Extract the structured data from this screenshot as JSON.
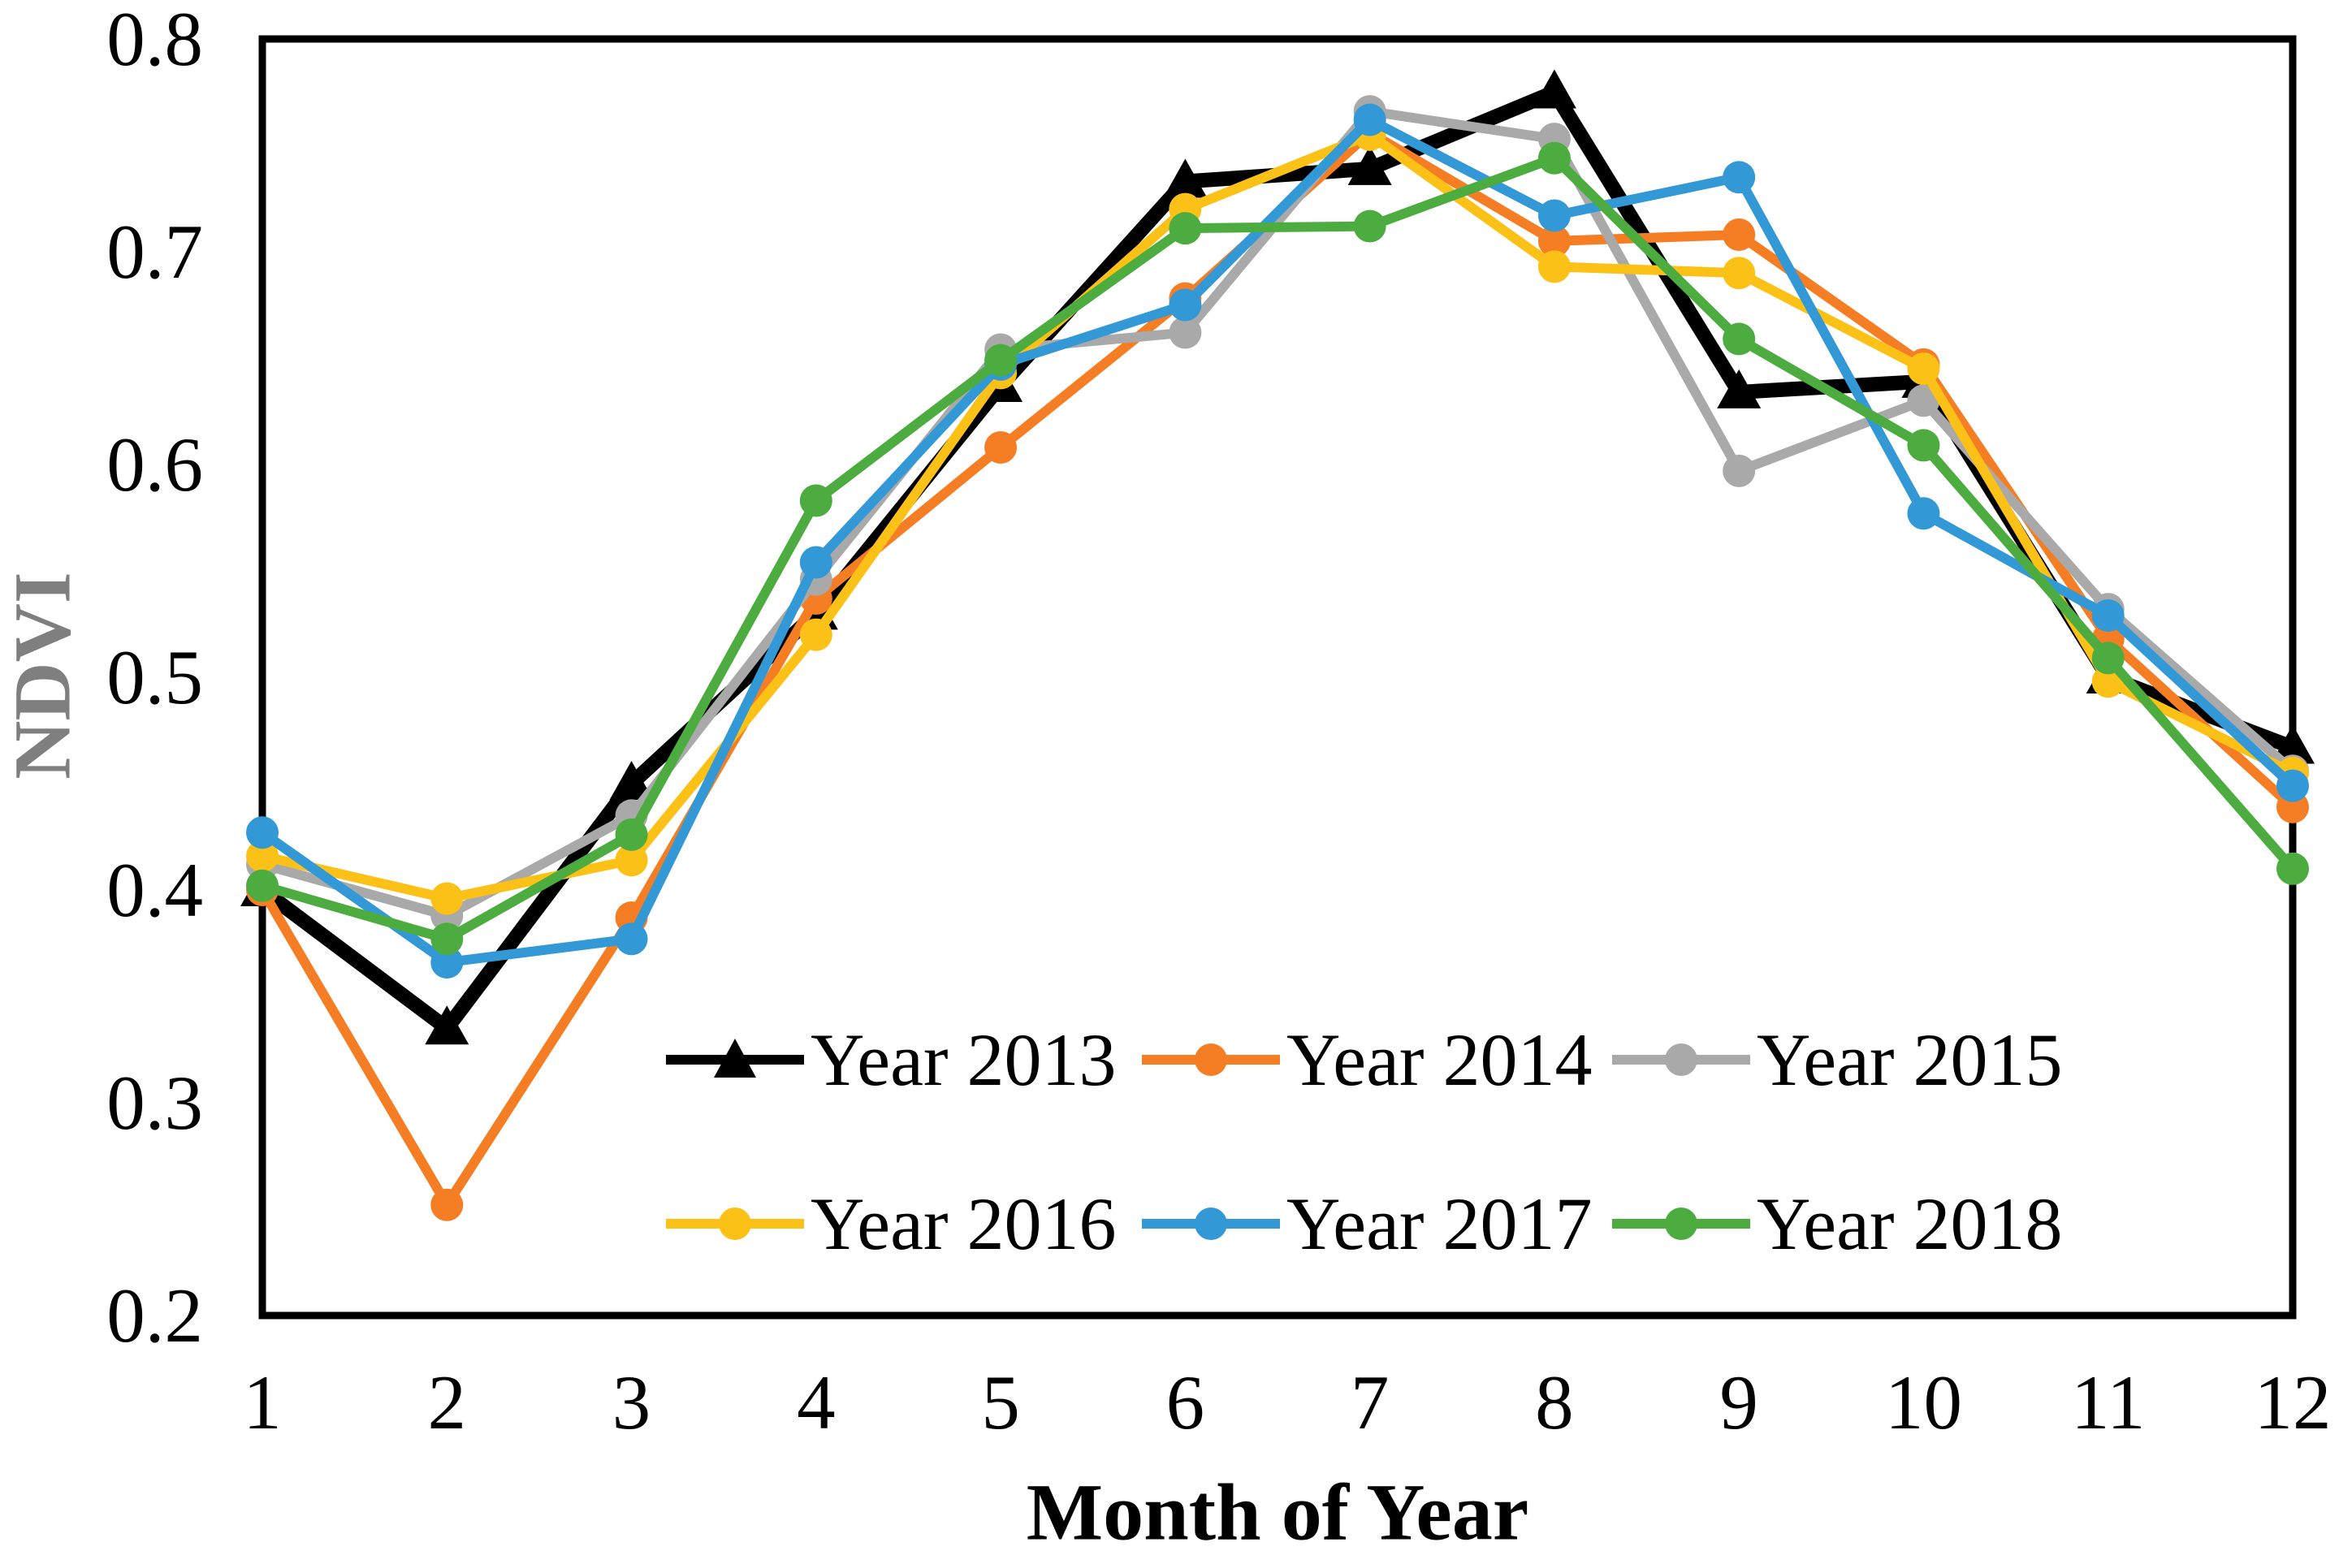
{
  "chart_data": {
    "type": "line",
    "title": "",
    "xlabel": "Month of Year",
    "ylabel": "NDVI",
    "ylabel_color": "#7f7f7f",
    "axis_color": "#000000",
    "grid": false,
    "legend_position": "inside-bottom, two rows",
    "x": [
      1,
      2,
      3,
      4,
      5,
      6,
      7,
      8,
      9,
      10,
      11,
      12
    ],
    "xlim": [
      1,
      12
    ],
    "ylim": [
      0.2,
      0.8
    ],
    "xticks": [
      "1",
      "2",
      "3",
      "4",
      "5",
      "6",
      "7",
      "8",
      "9",
      "10",
      "11",
      "12"
    ],
    "yticks": [
      "0.2",
      "0.3",
      "0.4",
      "0.5",
      "0.6",
      "0.7",
      "0.8"
    ],
    "series": [
      {
        "name": "Year 2013",
        "color": "#000000",
        "marker": "triangle",
        "line_width": 18,
        "values": [
          0.4,
          0.335,
          0.45,
          0.53,
          0.637,
          0.733,
          0.739,
          0.775,
          0.634,
          0.639,
          0.5,
          0.467
        ]
      },
      {
        "name": "Year 2014",
        "color": "#F57E25",
        "marker": "circle",
        "line_width": 12,
        "values": [
          0.4,
          0.252,
          0.387,
          0.537,
          0.608,
          0.678,
          0.756,
          0.705,
          0.708,
          0.647,
          0.518,
          0.439
        ]
      },
      {
        "name": "Year 2015",
        "color": "#A9A9A9",
        "marker": "circle",
        "line_width": 12,
        "values": [
          0.412,
          0.388,
          0.435,
          0.546,
          0.654,
          0.662,
          0.766,
          0.753,
          0.597,
          0.63,
          0.532,
          0.456
        ]
      },
      {
        "name": "Year 2016",
        "color": "#FCC117",
        "marker": "circle",
        "line_width": 12,
        "values": [
          0.416,
          0.396,
          0.414,
          0.52,
          0.643,
          0.72,
          0.755,
          0.693,
          0.69,
          0.645,
          0.498,
          0.455
        ]
      },
      {
        "name": "Year 2017",
        "color": "#3399D6",
        "marker": "circle",
        "line_width": 12,
        "values": [
          0.427,
          0.366,
          0.377,
          0.554,
          0.647,
          0.675,
          0.762,
          0.717,
          0.735,
          0.577,
          0.529,
          0.449
        ]
      },
      {
        "name": "Year 2018",
        "color": "#4CAC3F",
        "marker": "circle",
        "line_width": 12,
        "values": [
          0.402,
          0.377,
          0.426,
          0.583,
          0.649,
          0.711,
          0.712,
          0.744,
          0.659,
          0.609,
          0.509,
          0.41
        ]
      }
    ],
    "legend_rows": [
      [
        0,
        1,
        2
      ],
      [
        3,
        4,
        5
      ]
    ]
  }
}
